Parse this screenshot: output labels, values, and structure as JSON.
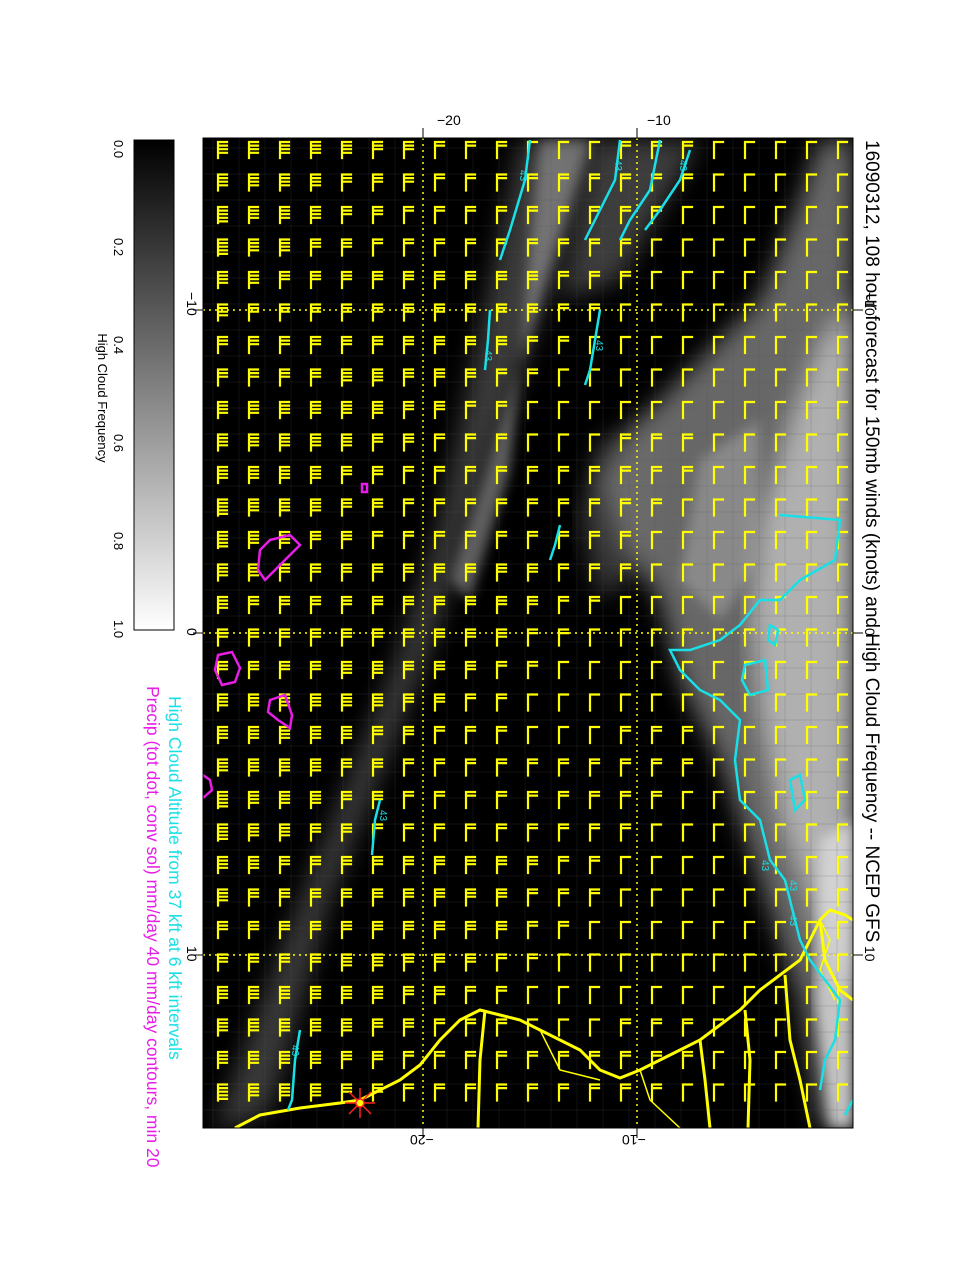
{
  "title": "16090312, 108 hour forecast for 150mb winds (knots) and High Cloud Frequency -- NCEP GFS",
  "legend_line1": "High Cloud Altitude from 37 kft at 6 kft intervals",
  "legend_line2": "Precip (tot dot, conv sol) mm/day 40 mm/day contours, min 20",
  "colorbar": {
    "label": "High Cloud Frequency",
    "ticks": [
      "0.0",
      "0.2",
      "0.4",
      "0.6",
      "0.8",
      "1.0"
    ]
  },
  "axis_labels": {
    "top": [
      "−20",
      "−10"
    ],
    "left": [
      "−10",
      "0",
      "10"
    ],
    "right": [
      "−10",
      "0",
      "10"
    ],
    "bottom": [
      "−20",
      "−10"
    ]
  },
  "contour_label": "43",
  "colors": {
    "wind_barbs": "#ffff00",
    "coastline": "#ffff00",
    "cloud_altitude": "#19e0e6",
    "precip": "#e61ee6",
    "background": "#000000",
    "storm_marker": "#ff2020"
  }
}
